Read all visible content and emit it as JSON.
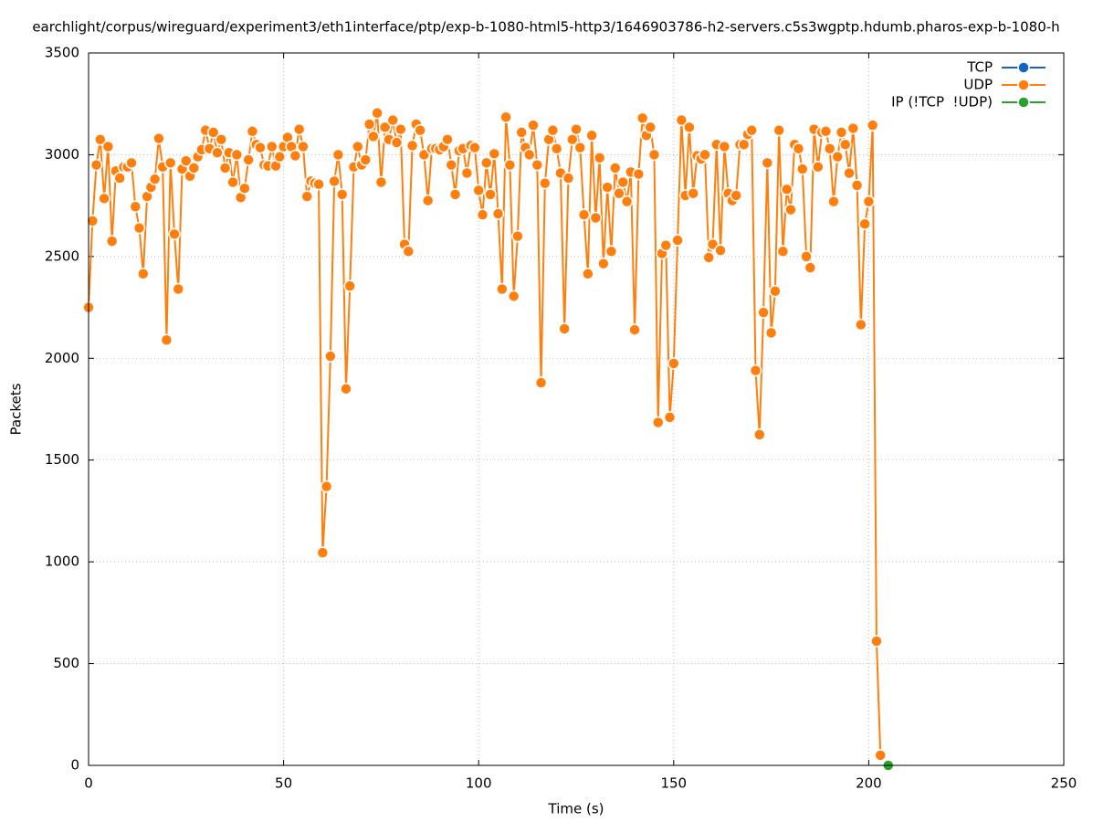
{
  "chart_data": {
    "type": "line",
    "title": "earchlight/corpus/wireguard/experiment3/eth1interface/ptp/exp-b-1080-html5-http3/1646903786-h2-servers.c5s3wgptp.hdumb.pharos-exp-b-1080-h",
    "x_label": "Time (s)",
    "y_label": "Packets",
    "xlim": [
      0,
      250
    ],
    "xticks": [
      0,
      50,
      100,
      150,
      200,
      250
    ],
    "ylim": [
      0,
      3500
    ],
    "yticks": [
      0,
      500,
      1000,
      1500,
      2000,
      2500,
      3000,
      3500
    ],
    "grid": true,
    "legend": "top-right",
    "series": [
      {
        "name": "TCP",
        "color": "#1565c0",
        "x": [],
        "values": []
      },
      {
        "name": "UDP",
        "color": "#ff7f0e",
        "x": [
          0,
          1,
          2,
          3,
          4,
          5,
          6,
          7,
          8,
          9,
          10,
          11,
          12,
          13,
          14,
          15,
          16,
          17,
          18,
          19,
          20,
          21,
          22,
          23,
          24,
          25,
          26,
          27,
          28,
          29,
          30,
          31,
          32,
          33,
          34,
          35,
          36,
          37,
          38,
          39,
          40,
          41,
          42,
          43,
          44,
          45,
          46,
          47,
          48,
          49,
          50,
          51,
          52,
          53,
          54,
          55,
          56,
          57,
          58,
          59,
          60,
          61,
          62,
          63,
          64,
          65,
          66,
          67,
          68,
          69,
          70,
          71,
          72,
          73,
          74,
          75,
          76,
          77,
          78,
          79,
          80,
          81,
          82,
          83,
          84,
          85,
          86,
          87,
          88,
          89,
          90,
          91,
          92,
          93,
          94,
          95,
          96,
          97,
          98,
          99,
          100,
          101,
          102,
          103,
          104,
          105,
          106,
          107,
          108,
          109,
          110,
          111,
          112,
          113,
          114,
          115,
          116,
          117,
          118,
          119,
          120,
          121,
          122,
          123,
          124,
          125,
          126,
          127,
          128,
          129,
          130,
          131,
          132,
          133,
          134,
          135,
          136,
          137,
          138,
          139,
          140,
          141,
          142,
          143,
          144,
          145,
          146,
          147,
          148,
          149,
          150,
          151,
          152,
          153,
          154,
          155,
          156,
          157,
          158,
          159,
          160,
          161,
          162,
          163,
          164,
          165,
          166,
          167,
          168,
          169,
          170,
          171,
          172,
          173,
          174,
          175,
          176,
          177,
          178,
          179,
          180,
          181,
          182,
          183,
          184,
          185,
          186,
          187,
          188,
          189,
          190,
          191,
          192,
          193,
          194,
          195,
          196,
          197,
          198,
          199,
          200,
          201,
          202,
          203
        ],
        "values": [
          2250,
          2675,
          2950,
          3075,
          2785,
          3040,
          2575,
          2920,
          2885,
          2940,
          2940,
          2960,
          2745,
          2640,
          2415,
          2795,
          2840,
          2880,
          3080,
          2940,
          2090,
          2960,
          2610,
          2340,
          2930,
          2970,
          2895,
          2935,
          2990,
          3025,
          3120,
          3030,
          3110,
          3010,
          3075,
          2935,
          3010,
          2865,
          3000,
          2790,
          2835,
          2975,
          3115,
          3050,
          3035,
          2950,
          2945,
          3040,
          2945,
          2990,
          3040,
          3085,
          3040,
          2995,
          3125,
          3040,
          2795,
          2870,
          2860,
          2855,
          1045,
          1370,
          2010,
          2870,
          3000,
          2805,
          1850,
          2355,
          2940,
          3040,
          2950,
          2975,
          3150,
          3090,
          3205,
          2865,
          3135,
          3075,
          3170,
          3060,
          3125,
          2560,
          2525,
          3045,
          3150,
          3120,
          3000,
          2775,
          3030,
          3030,
          3025,
          3040,
          3075,
          2950,
          2805,
          3020,
          3030,
          2910,
          3045,
          3035,
          2825,
          2705,
          2960,
          2805,
          3005,
          2710,
          2340,
          3185,
          2950,
          2305,
          2600,
          3110,
          3035,
          3000,
          3145,
          2950,
          1880,
          2860,
          3075,
          3120,
          3030,
          2910,
          2145,
          2885,
          3075,
          3125,
          3035,
          2705,
          2415,
          3095,
          2690,
          2985,
          2465,
          2840,
          2525,
          2935,
          2810,
          2865,
          2770,
          2915,
          2140,
          2905,
          3180,
          3095,
          3135,
          3000,
          1685,
          2515,
          2555,
          1710,
          1975,
          2580,
          3170,
          2800,
          3135,
          2810,
          2995,
          2980,
          3000,
          2495,
          2560,
          3050,
          2530,
          3040,
          2810,
          2775,
          2800,
          3050,
          3050,
          3100,
          3120,
          1940,
          1625,
          2225,
          2960,
          2125,
          2330,
          3120,
          2525,
          2830,
          2730,
          3050,
          3030,
          2930,
          2500,
          2445,
          3125,
          2940,
          3110,
          3115,
          3030,
          2770,
          2990,
          3110,
          3050,
          2910,
          3130,
          2850,
          2165,
          2660,
          2770,
          3145,
          610,
          50
        ]
      },
      {
        "name": "IP (!TCP  !UDP)",
        "color": "#2ca02c",
        "x": [
          205
        ],
        "values": [
          0
        ]
      }
    ]
  }
}
